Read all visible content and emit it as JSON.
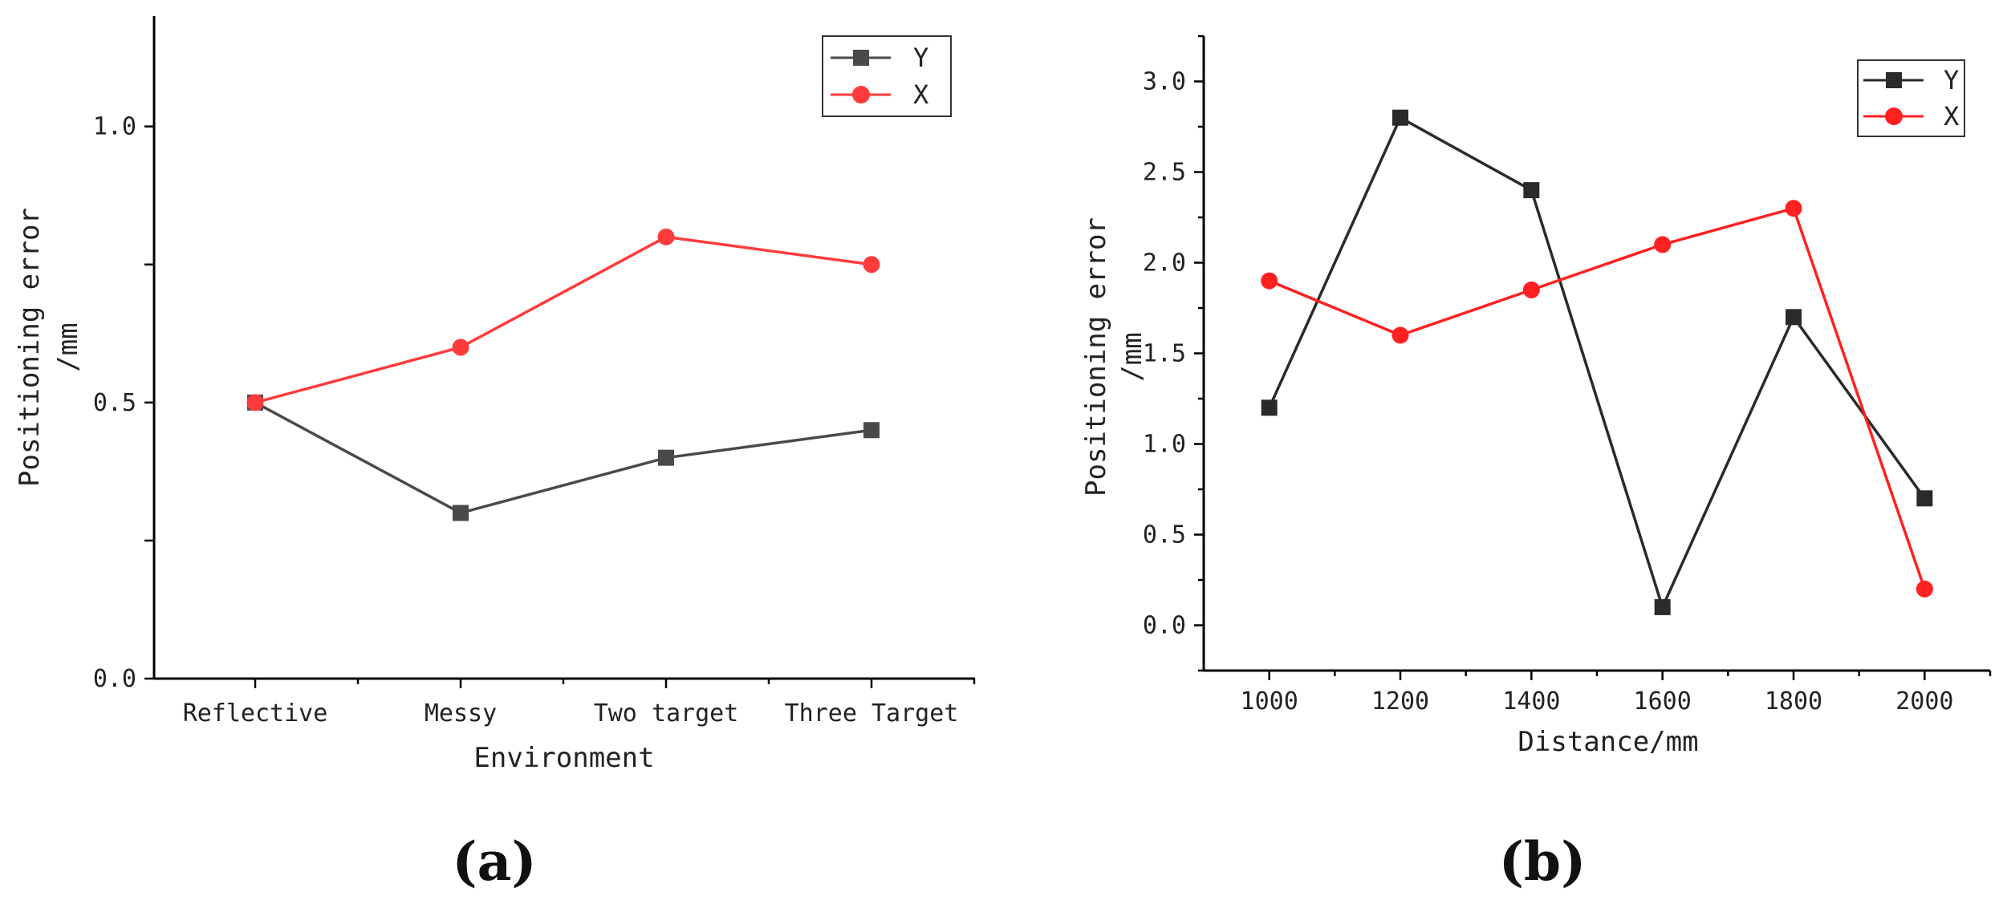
{
  "chart_data": [
    {
      "type": "line",
      "panel_label": "(a)",
      "title": "",
      "xlabel": "Environment",
      "ylabel_line1": "Positioning error",
      "ylabel_line2": "/mm",
      "categories": [
        "Reflective",
        "Messy",
        "Two target",
        "Three Target"
      ],
      "ylim": [
        0.0,
        1.2
      ],
      "yticks": [
        0.0,
        0.25,
        0.5,
        0.75,
        1.0
      ],
      "ytick_labels": [
        "0.0",
        "",
        "0.5",
        "",
        "1.0"
      ],
      "legend": {
        "position": "top-right",
        "entries": [
          "Y",
          "X"
        ]
      },
      "series": [
        {
          "name": "Y",
          "color": "#4a4a4a",
          "marker": "square",
          "values": [
            0.5,
            0.3,
            0.4,
            0.45
          ]
        },
        {
          "name": "X",
          "color": "#ff3b3b",
          "marker": "circle",
          "values": [
            0.5,
            0.6,
            0.8,
            0.75
          ]
        }
      ]
    },
    {
      "type": "line",
      "panel_label": "(b)",
      "title": "",
      "xlabel": "Distance/mm",
      "ylabel_line1": "Positioning error",
      "ylabel_line2": "/mm",
      "x": [
        1000,
        1200,
        1400,
        1600,
        1800,
        2000
      ],
      "xlim": [
        900,
        2100
      ],
      "xticks": [
        1000,
        1200,
        1400,
        1600,
        1800,
        2000
      ],
      "xtick_labels": [
        "1000",
        "1200",
        "1400",
        "1600",
        "1800",
        "2000"
      ],
      "ylim": [
        -0.25,
        3.25
      ],
      "yticks": [
        0.0,
        0.5,
        1.0,
        1.5,
        2.0,
        2.5,
        3.0
      ],
      "ytick_labels": [
        "0.0",
        "0.5",
        "1.0",
        "1.5",
        "2.0",
        "2.5",
        "3.0"
      ],
      "legend": {
        "position": "top-right",
        "entries": [
          "Y",
          "X"
        ]
      },
      "series": [
        {
          "name": "Y",
          "color": "#2a2a2a",
          "marker": "square",
          "values": [
            1.2,
            2.8,
            2.4,
            0.1,
            1.7,
            0.7
          ]
        },
        {
          "name": "X",
          "color": "#ff2020",
          "marker": "circle",
          "values": [
            1.9,
            1.6,
            1.85,
            2.1,
            2.3,
            0.2
          ]
        }
      ]
    }
  ]
}
